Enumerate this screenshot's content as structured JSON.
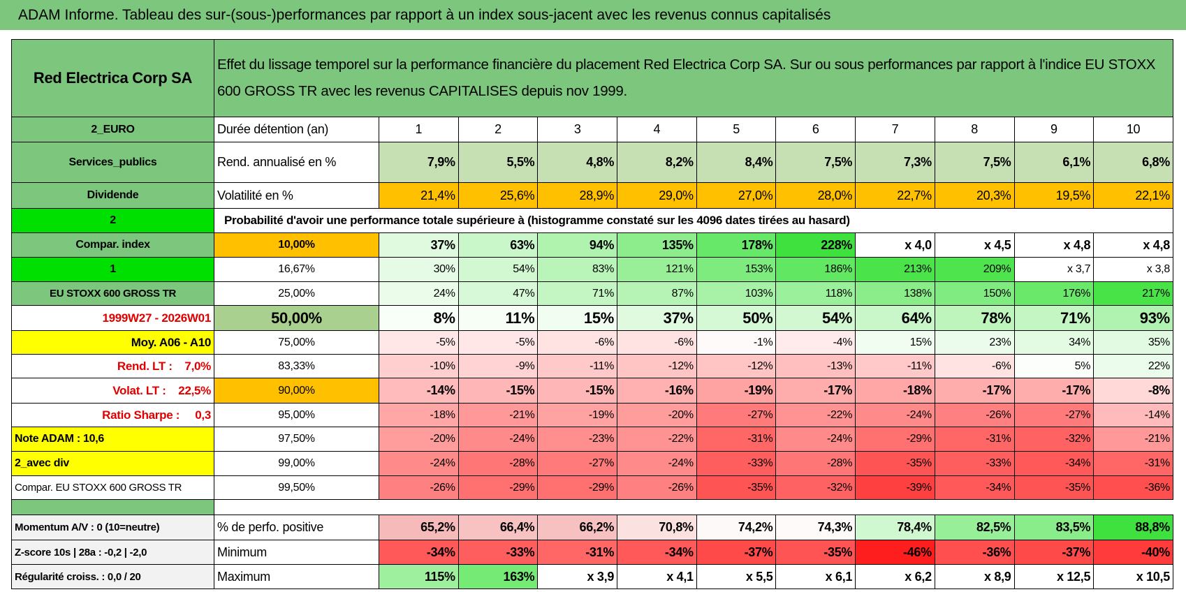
{
  "header": {
    "title": "ADAM Informe. Tableau des sur-(sous-)performances par rapport à un index sous-jacent avec les revenus connus capitalisés"
  },
  "table": {
    "rows": [
      [
        "Red Electrica Corp SA",
        "Effet du lissage temporel sur la performance financière du placement Red Electrica Corp SA. Sur ou sous performances par rapport à l'indice EU STOXX 600 GROSS TR avec les revenus CAPITALISES depuis nov 1999."
      ],
      [
        "2_EURO",
        "Durée détention (an)",
        "1",
        "2",
        "3",
        "4",
        "5",
        "6",
        "7",
        "8",
        "9",
        "10"
      ],
      [
        "Services_publics",
        "Rend. annualisé en %",
        "7,9%",
        "5,5%",
        "4,8%",
        "8,2%",
        "8,4%",
        "7,5%",
        "7,3%",
        "7,5%",
        "6,1%",
        "6,8%"
      ],
      [
        "Dividende",
        "Volatilité en %",
        "21,4%",
        "25,6%",
        "28,9%",
        "29,0%",
        "27,0%",
        "28,0%",
        "22,7%",
        "20,3%",
        "19,5%",
        "22,1%"
      ],
      [
        "2",
        "Probabilité d'avoir une performance totale supérieure à (histogramme constaté sur les 4096 dates tirées au hasard)"
      ],
      [
        "Compar. index",
        "10,00%",
        "37%",
        "63%",
        "94%",
        "135%",
        "178%",
        "228%",
        "x 4,0",
        "x 4,5",
        "x 4,8",
        "x 4,8"
      ],
      [
        "1",
        "16,67%",
        "30%",
        "54%",
        "83%",
        "121%",
        "153%",
        "186%",
        "213%",
        "209%",
        "x 3,7",
        "x 3,8"
      ],
      [
        "EU STOXX 600 GROSS TR",
        "25,00%",
        "24%",
        "47%",
        "71%",
        "87%",
        "103%",
        "118%",
        "138%",
        "150%",
        "176%",
        "217%"
      ],
      [
        "1999W27 - 2026W01",
        "50,00%",
        "8%",
        "11%",
        "15%",
        "37%",
        "50%",
        "54%",
        "64%",
        "78%",
        "71%",
        "93%"
      ],
      [
        "Moy. A06 - A10",
        "75,00%",
        "-5%",
        "-5%",
        "-6%",
        "-6%",
        "-1%",
        "-4%",
        "15%",
        "23%",
        "34%",
        "35%"
      ],
      [
        "Rend. LT :    7,0%",
        "83,33%",
        "-10%",
        "-9%",
        "-11%",
        "-12%",
        "-12%",
        "-13%",
        "-11%",
        "-6%",
        "5%",
        "22%"
      ],
      [
        "Volat. LT :    22,5%",
        "90,00%",
        "-14%",
        "-15%",
        "-15%",
        "-16%",
        "-19%",
        "-17%",
        "-18%",
        "-17%",
        "-17%",
        "-8%"
      ],
      [
        "Ratio Sharpe :     0,3",
        "95,00%",
        "-18%",
        "-21%",
        "-19%",
        "-20%",
        "-27%",
        "-22%",
        "-24%",
        "-26%",
        "-27%",
        "-14%"
      ],
      [
        "Note ADAM : 10,6",
        "97,50%",
        "-20%",
        "-24%",
        "-23%",
        "-22%",
        "-31%",
        "-24%",
        "-29%",
        "-31%",
        "-32%",
        "-21%"
      ],
      [
        "2_avec div",
        "99,00%",
        "-24%",
        "-28%",
        "-27%",
        "-24%",
        "-33%",
        "-28%",
        "-35%",
        "-33%",
        "-34%",
        "-31%"
      ],
      [
        "Compar. EU STOXX 600 GROSS TR",
        "99,50%",
        "-26%",
        "-29%",
        "-29%",
        "-26%",
        "-35%",
        "-32%",
        "-39%",
        "-34%",
        "-35%",
        "-36%"
      ],
      [
        "Momentum A/V : 0 (10=neutre)",
        "% de perfo. positive",
        "65,2%",
        "66,4%",
        "66,2%",
        "70,8%",
        "74,2%",
        "74,3%",
        "78,4%",
        "82,5%",
        "83,5%",
        "88,8%"
      ],
      [
        "Z-score 10s | 28a : -0,2 | -2,0",
        "Minimum",
        "-34%",
        "-33%",
        "-31%",
        "-34%",
        "-37%",
        "-35%",
        "-46%",
        "-36%",
        "-37%",
        "-40%"
      ],
      [
        "Régularité croiss. : 0,0 / 20",
        "Maximum",
        "115%",
        "163%",
        "x 3,9",
        "x 4,1",
        "x 5,5",
        "x 6,1",
        "x 6,2",
        "x 8,9",
        "x 12,5",
        "x 10,5"
      ]
    ]
  }
}
